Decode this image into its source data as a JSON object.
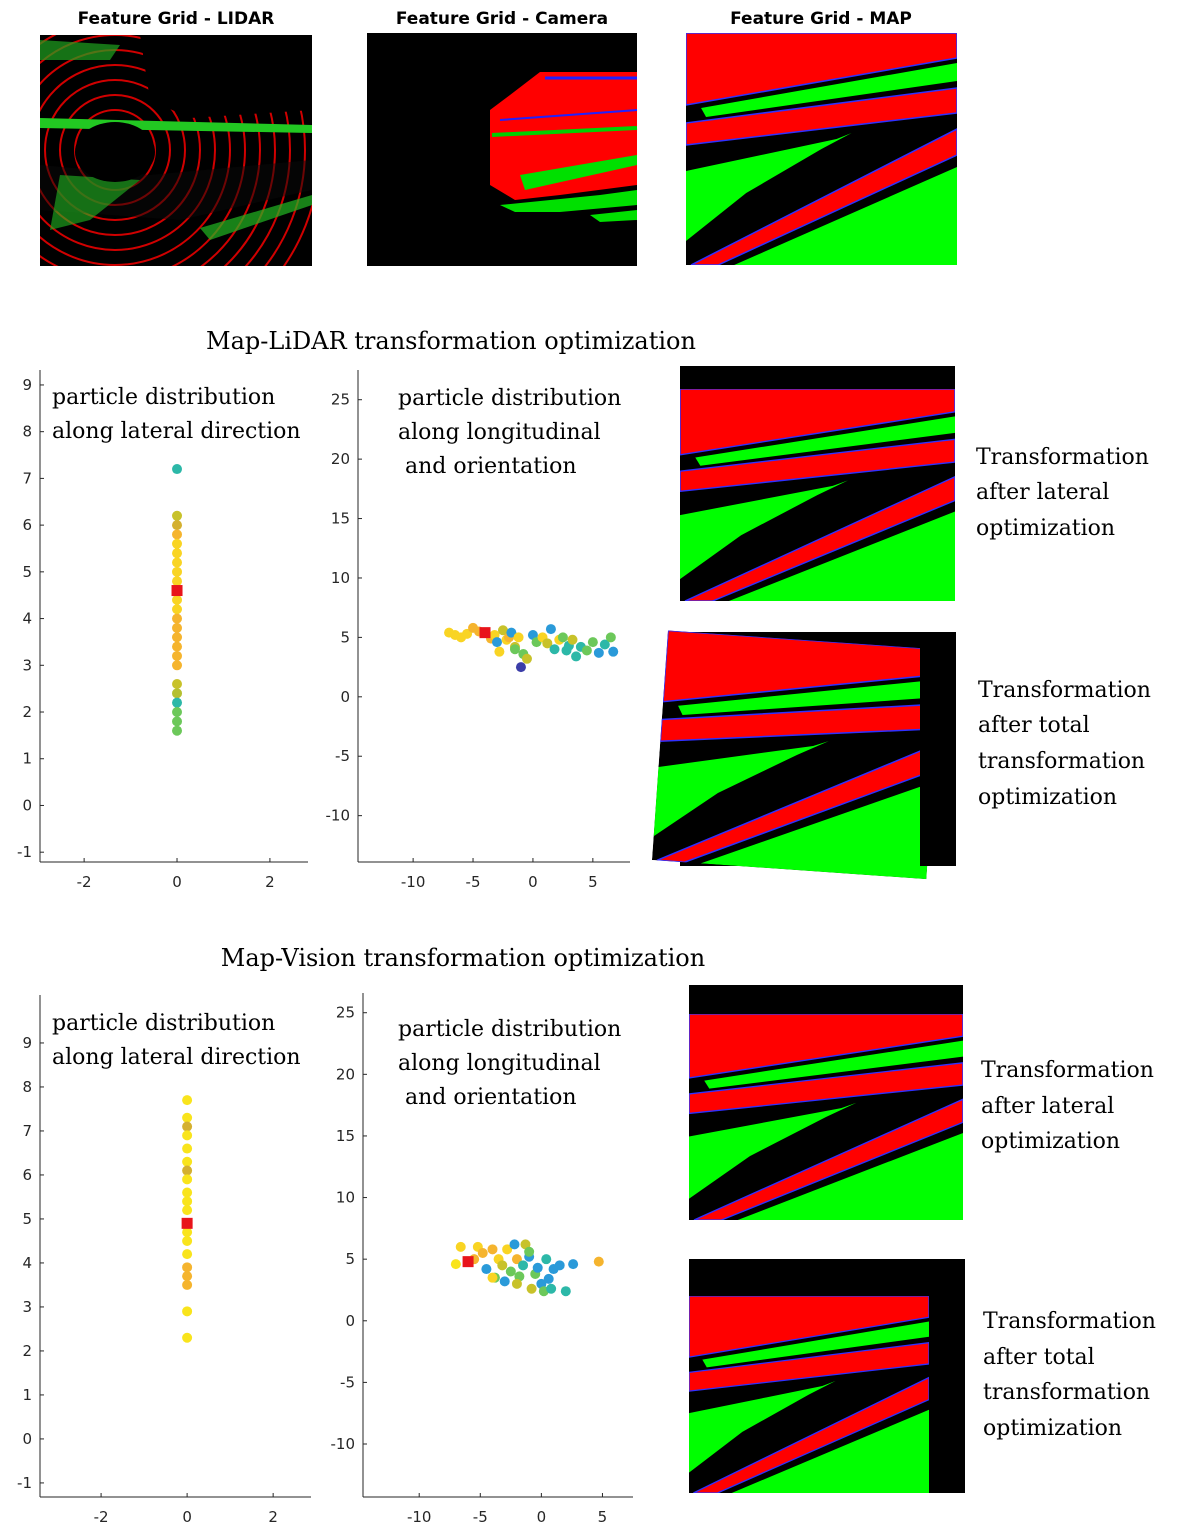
{
  "feature_grids": {
    "titles": [
      "Feature Grid - LIDAR",
      "Feature Grid - Camera",
      "Feature Grid - MAP"
    ]
  },
  "sections": [
    {
      "title": "Map-LiDAR transformation optimization",
      "captions": [
        [
          "Transformation",
          "after lateral",
          "optimization"
        ],
        [
          "Transformation",
          "after total",
          "transformation",
          "optimization"
        ]
      ]
    },
    {
      "title": "Map-Vision transformation optimization",
      "captions": [
        [
          "Transformation",
          "after lateral",
          "optimization"
        ],
        [
          "Transformation",
          "after total",
          "transformation",
          "optimization"
        ]
      ]
    }
  ],
  "chart_data": [
    {
      "type": "scatter",
      "annotation": [
        "particle distribution",
        "along lateral direction"
      ],
      "xlim": [
        -2.95,
        2.82
      ],
      "xticks": [
        -2,
        0,
        2
      ],
      "ylim": [
        -1.21,
        9.32
      ],
      "yticks": [
        -1,
        0,
        1,
        2,
        3,
        4,
        5,
        6,
        7,
        8,
        9
      ],
      "series": [
        {
          "color": "#f9d423",
          "colors": [
            "#2cb8a8",
            "#c8c22a",
            "#d4b030",
            "#f5b42e",
            "#f9d423",
            "#f9d423",
            "#f9d423",
            "#f9d423",
            "#f9d423",
            "#f9d423",
            "#f9d423",
            "#f5b42e",
            "#f5b42e",
            "#f5b42e",
            "#f5b42e",
            "#f5b42e",
            "#f5b42e",
            "#c8c22a",
            "#b5c030",
            "#2cb8a8",
            "#6cc85a",
            "#6cc85a",
            "#6cc85a"
          ],
          "x": [
            0,
            0,
            0,
            0,
            0,
            0,
            0,
            0,
            0,
            0,
            0,
            0,
            0,
            0,
            0,
            0,
            0,
            0,
            0,
            0,
            0,
            0,
            0
          ],
          "values": [
            7.2,
            6.2,
            6.0,
            5.8,
            5.6,
            5.4,
            5.2,
            5.0,
            4.8,
            4.4,
            4.2,
            4.0,
            3.8,
            3.6,
            3.4,
            3.2,
            3.0,
            2.6,
            2.4,
            2.2,
            2.0,
            1.8,
            1.6
          ]
        },
        {
          "color": "#e8141b",
          "marker": "square",
          "x": [
            0
          ],
          "values": [
            4.6
          ]
        }
      ]
    },
    {
      "type": "scatter",
      "annotation": [
        "particle distribution",
        "along longitudinal",
        " and orientation"
      ],
      "xlim": [
        -14.6,
        8.1
      ],
      "xticks": [
        -10,
        -5,
        0,
        5
      ],
      "ylim": [
        -13.9,
        27.5
      ],
      "yticks": [
        -10,
        -5,
        0,
        5,
        10,
        15,
        20,
        25
      ],
      "series": [
        {
          "color": "#f9d423",
          "colors": [
            "#f9d423",
            "#f9d423",
            "#f9d423",
            "#f9d423",
            "#f5b42e",
            "#f5b42e",
            "#f5b42e",
            "#f9d423",
            "#2a9ad9",
            "#f9d423",
            "#c8c22a",
            "#f9d423",
            "#f5b42e",
            "#2a9ad9",
            "#c8c22a",
            "#f9d423",
            "#3b3da8",
            "#6cc85a",
            "#c8c22a",
            "#2a9ad9",
            "#6cc85a",
            "#f9d423",
            "#c8c22a",
            "#2a9ad9",
            "#2cb8a8",
            "#f9d423",
            "#6cc85a",
            "#2cb8a8",
            "#c8c22a",
            "#2cb8a8",
            "#2cb8a8",
            "#6cc85a",
            "#6cc85a",
            "#2a9ad9",
            "#2cb8a8",
            "#6cc85a",
            "#2a9ad9",
            "#6cc85a",
            "#2cb8a8"
          ],
          "x": [
            -7,
            -6.5,
            -6,
            -5.5,
            -5,
            -4.5,
            -3.5,
            -3.2,
            -3,
            -2.8,
            -2.5,
            -2.2,
            -2,
            -1.8,
            -1.5,
            -1.2,
            -1,
            -0.8,
            -0.5,
            0,
            0.3,
            0.8,
            1.2,
            1.5,
            1.8,
            2.2,
            2.5,
            3,
            3.3,
            3.6,
            4,
            4.5,
            5,
            5.5,
            6,
            6.5,
            6.7,
            -1.5,
            2.8
          ],
          "values": [
            5.4,
            5.2,
            5.0,
            5.3,
            5.8,
            5.5,
            4.9,
            5.2,
            4.6,
            3.8,
            5.6,
            4.8,
            5.0,
            5.4,
            4.2,
            5.0,
            2.5,
            3.6,
            3.2,
            5.2,
            4.6,
            5.0,
            4.5,
            5.7,
            4.0,
            4.8,
            5.0,
            4.3,
            4.8,
            3.4,
            4.2,
            3.9,
            4.6,
            3.7,
            4.4,
            5.0,
            3.8,
            4.0,
            3.9
          ]
        },
        {
          "color": "#e8141b",
          "marker": "square",
          "x": [
            -4
          ],
          "values": [
            5.4
          ]
        }
      ]
    },
    {
      "type": "scatter",
      "annotation": [
        "particle distribution",
        "along lateral direction"
      ],
      "xlim": [
        -3.42,
        2.88
      ],
      "xticks": [
        -2,
        0,
        2
      ],
      "ylim": [
        -1.32,
        10.09
      ],
      "yticks": [
        -1,
        0,
        1,
        2,
        3,
        4,
        5,
        6,
        7,
        8,
        9
      ],
      "series": [
        {
          "color": "#f9e41c",
          "colors": [
            "#f9e41c",
            "#f9e41c",
            "#d4b030",
            "#f9e41c",
            "#f9e41c",
            "#f9e41c",
            "#d4b030",
            "#f9e41c",
            "#f9e41c",
            "#f9e41c",
            "#f9e41c",
            "#f9e41c",
            "#f9e41c",
            "#f9e41c",
            "#f5b42e",
            "#f5b42e",
            "#f5b42e",
            "#f9e41c",
            "#f9e41c"
          ],
          "x": [
            0,
            0,
            0,
            0,
            0,
            0,
            0,
            0,
            0,
            0,
            0,
            0,
            0,
            0,
            0,
            0,
            0,
            0,
            0
          ],
          "values": [
            7.7,
            7.3,
            7.1,
            6.9,
            6.6,
            6.3,
            6.1,
            5.9,
            5.6,
            5.4,
            5.2,
            4.7,
            4.5,
            4.2,
            3.9,
            3.7,
            3.5,
            2.9,
            2.3
          ]
        },
        {
          "color": "#e8141b",
          "marker": "square",
          "x": [
            0
          ],
          "values": [
            4.9
          ]
        }
      ]
    },
    {
      "type": "scatter",
      "annotation": [
        "particle distribution",
        "along longitudinal",
        " and orientation"
      ],
      "xlim": [
        -14.6,
        7.5
      ],
      "xticks": [
        -10,
        -5,
        0,
        5
      ],
      "ylim": [
        -14.3,
        26.6
      ],
      "yticks": [
        -10,
        -5,
        0,
        5,
        10,
        15,
        20,
        25
      ],
      "series": [
        {
          "color": "#f9d423",
          "colors": [
            "#f9e41c",
            "#f9d423",
            "#f5b42e",
            "#f9d423",
            "#f5b42e",
            "#2a9ad9",
            "#f5b42e",
            "#6cc85a",
            "#f9d423",
            "#c8c22a",
            "#2a9ad9",
            "#f9d423",
            "#6cc85a",
            "#2a9ad9",
            "#f5b42e",
            "#6cc85a",
            "#2cb8a8",
            "#c8c22a",
            "#2a9ad9",
            "#c8c22a",
            "#6cc85a",
            "#2a9ad9",
            "#2a9ad9",
            "#6cc85a",
            "#2cb8a8",
            "#2a9ad9",
            "#2cb8a8",
            "#2a9ad9",
            "#2a9ad9",
            "#2cb8a8",
            "#2a9ad9",
            "#f5b42e",
            "#6cc85a",
            "#c8c22a",
            "#f9d423"
          ],
          "x": [
            -7,
            -6.6,
            -5.5,
            -5.2,
            -4.8,
            -4.5,
            -4,
            -3.8,
            -3.5,
            -3.2,
            -3,
            -2.8,
            -2.5,
            -2.2,
            -2,
            -1.8,
            -1.5,
            -1.3,
            -1,
            -0.8,
            -0.5,
            -0.3,
            0,
            0.2,
            0.4,
            0.6,
            0.8,
            1,
            1.5,
            2,
            2.6,
            4.7,
            -1,
            -2,
            -4
          ],
          "values": [
            4.6,
            6.0,
            5.0,
            6.0,
            5.5,
            4.2,
            5.8,
            3.5,
            5.0,
            4.5,
            3.2,
            5.8,
            4.0,
            6.2,
            5.0,
            3.6,
            4.5,
            6.2,
            5.2,
            2.6,
            3.8,
            4.3,
            3.0,
            2.4,
            5.0,
            3.4,
            2.6,
            4.2,
            4.5,
            2.4,
            4.6,
            4.8,
            5.6,
            3.0,
            3.5
          ]
        },
        {
          "color": "#e8141b",
          "marker": "square",
          "x": [
            -6
          ],
          "values": [
            4.8
          ]
        }
      ]
    }
  ]
}
